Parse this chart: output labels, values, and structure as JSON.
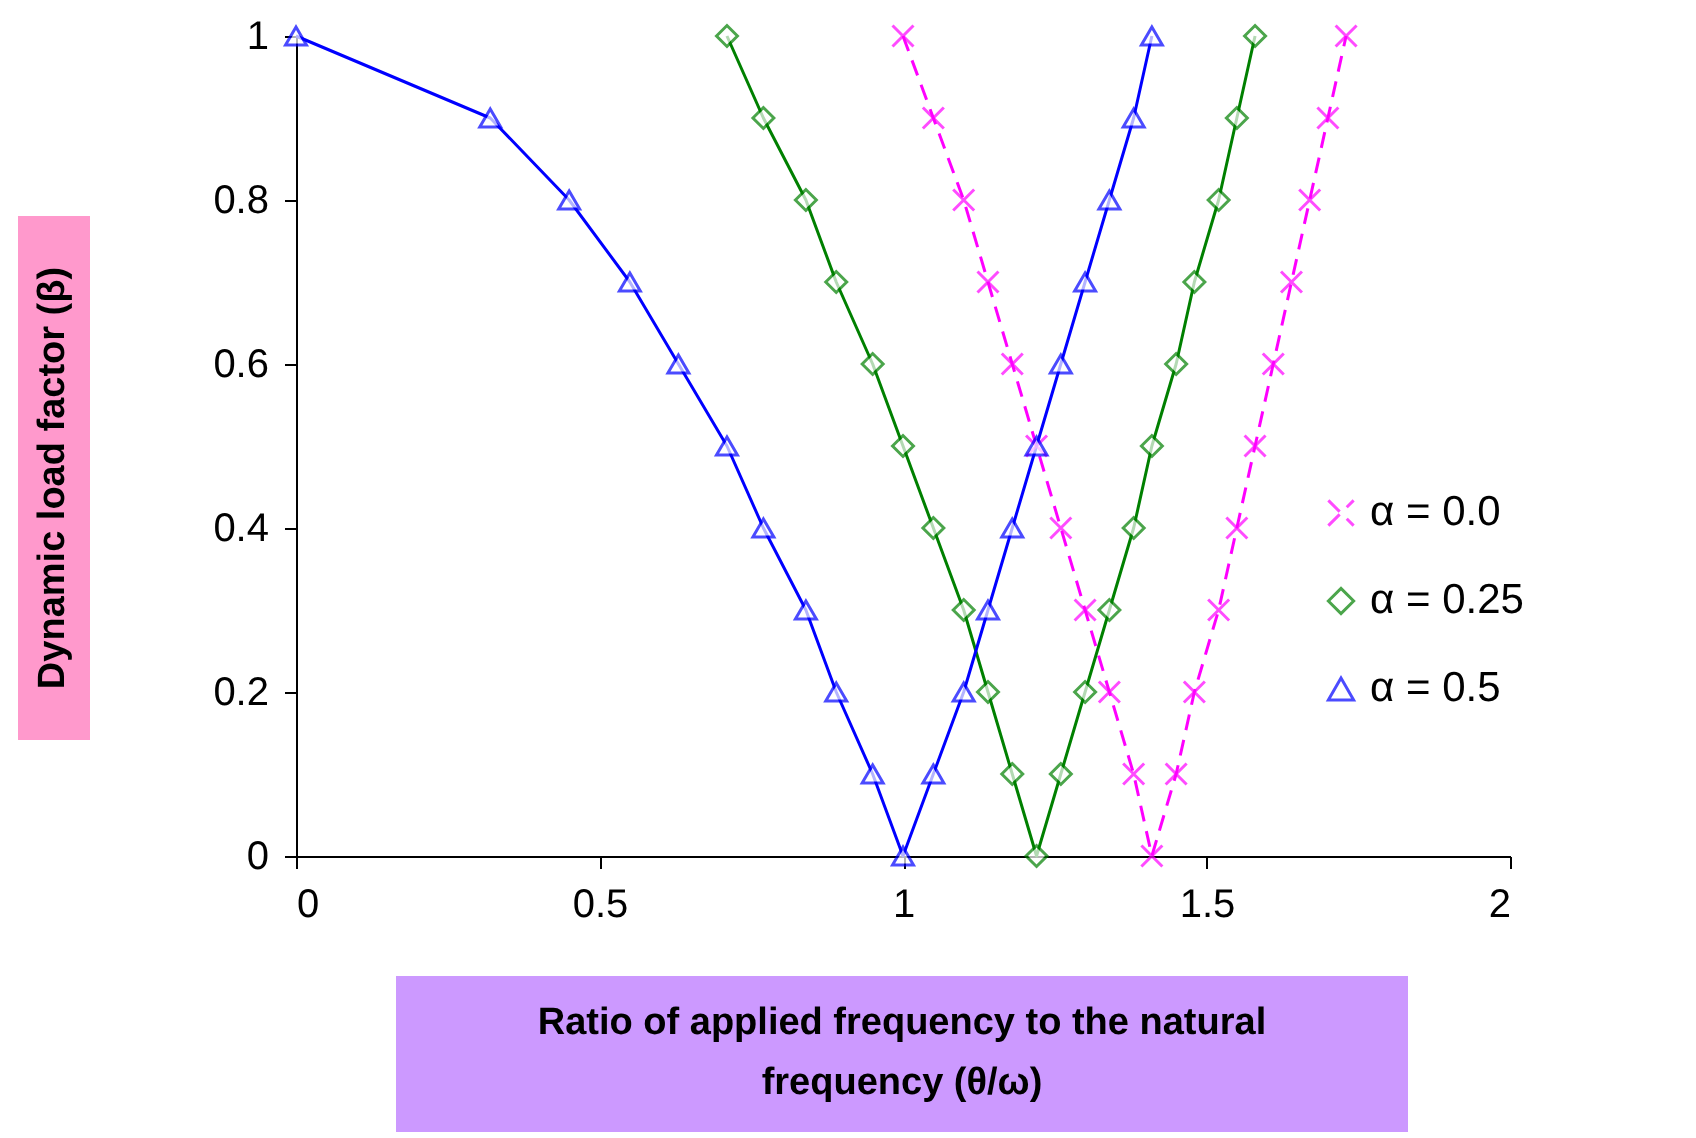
{
  "chart_data": {
    "type": "line",
    "xlabel": "Ratio of applied frequency to the natural frequency (θ/ω)",
    "ylabel": "Dynamic load factor (β)",
    "xlim": [
      0,
      2
    ],
    "xticks": [
      0,
      0.5,
      1,
      1.5,
      2
    ],
    "ylim": [
      0,
      1
    ],
    "yticks": [
      0,
      0.2,
      0.4,
      0.6,
      0.8,
      1
    ],
    "grid": false,
    "legend": "right",
    "series": [
      {
        "name": "α = 0.0",
        "color": "#ff00ff",
        "marker": "cross",
        "line_style": "dashed",
        "x": [
          1.0,
          1.05,
          1.1,
          1.14,
          1.18,
          1.22,
          1.26,
          1.3,
          1.34,
          1.38,
          1.41,
          1.45,
          1.48,
          1.52,
          1.55,
          1.58,
          1.61,
          1.64,
          1.67,
          1.7,
          1.73
        ],
        "values": [
          1,
          0.9,
          0.8,
          0.7,
          0.6,
          0.5,
          0.4,
          0.3,
          0.2,
          0.1,
          0,
          0.1,
          0.2,
          0.3,
          0.4,
          0.5,
          0.6,
          0.7,
          0.8,
          0.9,
          1
        ]
      },
      {
        "name": "α = 0.25",
        "color": "#008000",
        "marker": "diamond",
        "line_style": "solid",
        "x": [
          0.71,
          0.77,
          0.84,
          0.89,
          0.95,
          1.0,
          1.05,
          1.1,
          1.14,
          1.18,
          1.22,
          1.26,
          1.3,
          1.34,
          1.38,
          1.41,
          1.45,
          1.48,
          1.52,
          1.55,
          1.58
        ],
        "values": [
          1,
          0.9,
          0.8,
          0.7,
          0.6,
          0.5,
          0.4,
          0.3,
          0.2,
          0.1,
          0,
          0.1,
          0.2,
          0.3,
          0.4,
          0.5,
          0.6,
          0.7,
          0.8,
          0.9,
          1
        ]
      },
      {
        "name": "α = 0.5",
        "color": "#0000ff",
        "marker": "triangle",
        "line_style": "solid",
        "x": [
          0,
          0.32,
          0.45,
          0.55,
          0.63,
          0.71,
          0.77,
          0.84,
          0.89,
          0.95,
          1.0,
          1.05,
          1.1,
          1.14,
          1.18,
          1.22,
          1.26,
          1.3,
          1.34,
          1.38,
          1.41
        ],
        "values": [
          1,
          0.9,
          0.8,
          0.7,
          0.6,
          0.5,
          0.4,
          0.3,
          0.2,
          0.1,
          0,
          0.1,
          0.2,
          0.3,
          0.4,
          0.5,
          0.6,
          0.7,
          0.8,
          0.9,
          1
        ]
      }
    ]
  }
}
